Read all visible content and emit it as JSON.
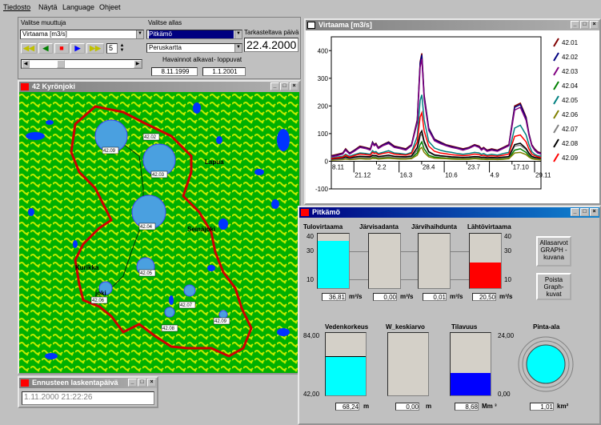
{
  "menu": {
    "items": [
      "Tiedosto",
      "Näytä",
      "Language",
      "Ohjeet"
    ]
  },
  "control": {
    "muuttuja_label": "Valitse muuttuja",
    "muuttuja_value": "Virtaama [m3/s]",
    "allas_label": "Valitse allas",
    "allas_value": "Pitkämö",
    "allas2_value": "Peruskartta",
    "speed": "5",
    "date_label": "Tarkasteltava päivä",
    "date_value": "22.4.2000",
    "havainnot_label": "Havainnot alkavat",
    "loppuvat_label": "- loppuvat",
    "start_date": "8.11.1999",
    "end_date": "1.1.2001"
  },
  "map": {
    "title": "42 Kyrönjoki",
    "labels": {
      "lapua": "Lapua",
      "seinajoki": "Seinäjoki",
      "kurikka": "Kurikka",
      "joki": "joki"
    },
    "stations": [
      "42.09",
      "42.02",
      "42.03",
      "42.04",
      "42.05",
      "42.06",
      "42.07",
      "42.08",
      "42.09"
    ]
  },
  "forecast": {
    "title": "Ennusteen laskentapäivä",
    "value": "1.11.2000 21:22:26"
  },
  "chart_data": {
    "type": "line",
    "title": "Virtaama [m3/s]",
    "ylim": [
      -100,
      450
    ],
    "yticks": [
      "400",
      "300",
      "200",
      "100",
      "0",
      "-100"
    ],
    "xticks_top": [
      "8.11",
      "2.2",
      "28.4",
      "23.7",
      "17.10"
    ],
    "xticks_bottom": [
      "21.12",
      "16.3",
      "10.6",
      "4.9",
      "29.11"
    ],
    "x": [
      0,
      10,
      20,
      25,
      28,
      32,
      40,
      50,
      60,
      68,
      72,
      75,
      78,
      82,
      90,
      100,
      110,
      120,
      130,
      140,
      150,
      155,
      158,
      162,
      170,
      180,
      190,
      200,
      210,
      220,
      230,
      240,
      250,
      258,
      262,
      266,
      272,
      280,
      290,
      300,
      310,
      320,
      330,
      340,
      345,
      350,
      355,
      360,
      366
    ],
    "series": [
      {
        "name": "42.01",
        "color": "#800000",
        "values": [
          20,
          25,
          30,
          45,
          38,
          30,
          40,
          55,
          50,
          45,
          70,
          60,
          65,
          50,
          60,
          70,
          55,
          50,
          45,
          60,
          150,
          360,
          390,
          240,
          120,
          80,
          70,
          60,
          55,
          50,
          45,
          50,
          60,
          55,
          45,
          50,
          40,
          45,
          40,
          50,
          60,
          200,
          210,
          160,
          100,
          60,
          45,
          35,
          30
        ]
      },
      {
        "name": "42.02",
        "color": "#000080",
        "values": [
          18,
          22,
          28,
          42,
          36,
          28,
          38,
          52,
          48,
          42,
          68,
          58,
          62,
          48,
          58,
          68,
          52,
          48,
          42,
          58,
          145,
          355,
          385,
          235,
          118,
          78,
          68,
          58,
          52,
          48,
          42,
          48,
          58,
          52,
          42,
          48,
          38,
          42,
          38,
          48,
          58,
          195,
          205,
          155,
          98,
          58,
          42,
          32,
          28
        ]
      },
      {
        "name": "42.03",
        "color": "#800080",
        "values": [
          16,
          20,
          26,
          40,
          34,
          26,
          36,
          50,
          46,
          40,
          64,
          56,
          60,
          46,
          56,
          64,
          50,
          46,
          40,
          56,
          140,
          340,
          370,
          225,
          112,
          74,
          64,
          56,
          50,
          46,
          40,
          46,
          56,
          50,
          40,
          46,
          36,
          40,
          36,
          46,
          56,
          185,
          195,
          148,
          94,
          56,
          40,
          30,
          26
        ]
      },
      {
        "name": "42.04",
        "color": "#008000",
        "values": [
          5,
          6,
          8,
          10,
          9,
          7,
          9,
          12,
          11,
          10,
          14,
          12,
          13,
          11,
          12,
          14,
          11,
          10,
          9,
          12,
          30,
          60,
          70,
          45,
          22,
          15,
          13,
          11,
          10,
          9,
          8,
          9,
          11,
          10,
          8,
          9,
          7,
          8,
          7,
          9,
          11,
          40,
          45,
          32,
          20,
          12,
          9,
          7,
          6
        ]
      },
      {
        "name": "42.05",
        "color": "#008080",
        "values": [
          12,
          15,
          18,
          25,
          22,
          18,
          24,
          30,
          28,
          25,
          38,
          33,
          35,
          28,
          32,
          38,
          30,
          28,
          25,
          32,
          90,
          220,
          240,
          150,
          72,
          48,
          40,
          35,
          32,
          28,
          25,
          28,
          32,
          30,
          25,
          28,
          22,
          25,
          22,
          28,
          32,
          120,
          130,
          95,
          60,
          35,
          25,
          20,
          18
        ]
      },
      {
        "name": "42.06",
        "color": "#808000",
        "values": [
          4,
          5,
          6,
          8,
          7,
          6,
          7,
          9,
          8,
          8,
          11,
          10,
          10,
          8,
          9,
          11,
          9,
          8,
          8,
          9,
          22,
          45,
          50,
          32,
          16,
          11,
          10,
          9,
          8,
          7,
          7,
          7,
          9,
          8,
          7,
          7,
          6,
          7,
          6,
          7,
          9,
          30,
          32,
          24,
          15,
          9,
          7,
          6,
          5
        ]
      },
      {
        "name": "42.07",
        "color": "#808080",
        "values": [
          6,
          7,
          9,
          12,
          11,
          9,
          11,
          14,
          13,
          12,
          18,
          16,
          17,
          13,
          15,
          17,
          14,
          13,
          12,
          15,
          40,
          90,
          100,
          65,
          32,
          21,
          18,
          16,
          14,
          13,
          12,
          13,
          15,
          14,
          12,
          13,
          11,
          12,
          11,
          13,
          15,
          55,
          58,
          42,
          26,
          16,
          12,
          10,
          9
        ]
      },
      {
        "name": "42.08",
        "color": "#000000",
        "values": [
          8,
          10,
          12,
          16,
          14,
          12,
          15,
          18,
          17,
          16,
          22,
          20,
          21,
          17,
          19,
          22,
          18,
          17,
          16,
          19,
          50,
          100,
          110,
          72,
          35,
          23,
          20,
          18,
          16,
          15,
          14,
          15,
          17,
          16,
          14,
          15,
          13,
          14,
          13,
          15,
          17,
          60,
          65,
          46,
          29,
          18,
          14,
          12,
          10
        ]
      },
      {
        "name": "42.09",
        "color": "#ff0000",
        "values": [
          10,
          12,
          15,
          22,
          19,
          15,
          20,
          26,
          24,
          22,
          32,
          28,
          30,
          24,
          28,
          32,
          26,
          24,
          22,
          28,
          70,
          160,
          175,
          110,
          55,
          36,
          30,
          27,
          24,
          22,
          20,
          22,
          26,
          24,
          20,
          22,
          18,
          20,
          18,
          22,
          26,
          90,
          95,
          70,
          44,
          26,
          20,
          16,
          13
        ]
      }
    ]
  },
  "pitkamo": {
    "title": "Pitkämö",
    "gauges": [
      {
        "label": "Tulovirtaama",
        "value": "36,81",
        "unit": "m³/s",
        "level": 0.87
      },
      {
        "label": "Järvisadanta",
        "value": "0,00",
        "unit": "m³/s",
        "level": 0
      },
      {
        "label": "Järvihaihdunta",
        "value": "0,01",
        "unit": "m³/s",
        "level": 0
      },
      {
        "label": "Lähtövirtaama",
        "value": "20,50",
        "unit": "m³/s",
        "level": 0.47
      }
    ],
    "scale_left": [
      "40",
      "30",
      "10"
    ],
    "scale_right": [
      "40",
      "30",
      "10"
    ],
    "btn_graph": "Allasarvot GRAPH -kuvana",
    "btn_poista": "Poista Graph-kuvat",
    "lower": [
      {
        "label": "Vedenkorkeus",
        "value": "68,24",
        "unit": "m",
        "level": 0.63
      },
      {
        "label": "W_keskiarvo",
        "value": "0,00",
        "unit": "m",
        "level": 0
      },
      {
        "label": "Tilavuus",
        "value": "8,68",
        "unit": "Mm ³",
        "level": 0.36
      },
      {
        "label": "Pinta-ala",
        "value": "1,01",
        "unit": "km²"
      }
    ],
    "vk_max": "84,00",
    "vk_min": "42,00",
    "til_max": "24,00",
    "til_min": "0,00"
  },
  "colors": {
    "title_active": "#000080",
    "gauge_fill": "#00ffff",
    "out_fill": "#ff0000",
    "vol_fill": "#0000ff"
  }
}
